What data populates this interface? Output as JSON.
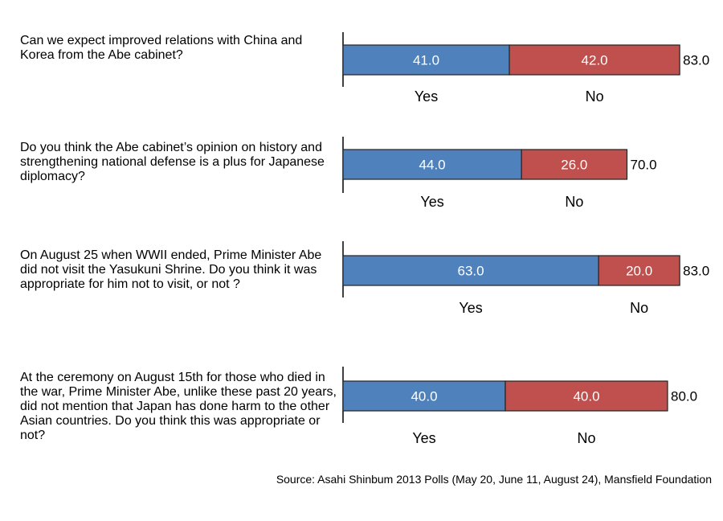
{
  "source": "Source: Asahi Shinbum 2013 Polls (May 20, June 11, August 24), Mansfield Foundation",
  "colors": {
    "yes": "#4f81bd",
    "no": "#c0504d",
    "border": "#222222"
  },
  "chart_data": [
    {
      "type": "bar",
      "stacked": true,
      "orientation": "horizontal",
      "title": "Can we expect improved relations with China and Korea from the Abe cabinet?",
      "series": [
        {
          "name": "Yes",
          "values": [
            41.0
          ]
        },
        {
          "name": "No",
          "values": [
            42.0
          ]
        }
      ],
      "total": "83.0",
      "labels": {
        "yes": "41.0",
        "no": "42.0"
      }
    },
    {
      "type": "bar",
      "stacked": true,
      "orientation": "horizontal",
      "title": "Do you think the Abe cabinet’s opinion on history and strengthening national defense is a plus for Japanese diplomacy?",
      "series": [
        {
          "name": "Yes",
          "values": [
            44.0
          ]
        },
        {
          "name": "No",
          "values": [
            26.0
          ]
        }
      ],
      "total": "70.0",
      "labels": {
        "yes": "44.0",
        "no": "26.0"
      }
    },
    {
      "type": "bar",
      "stacked": true,
      "orientation": "horizontal",
      "title": "On August 25 when WWII ended, Prime Minister Abe did not visit the Yasukuni Shrine. Do you think it was appropriate for him not to visit, or not ?",
      "series": [
        {
          "name": "Yes",
          "values": [
            63.0
          ]
        },
        {
          "name": "No",
          "values": [
            20.0
          ]
        }
      ],
      "total": "83.0",
      "labels": {
        "yes": "63.0",
        "no": "20.0"
      }
    },
    {
      "type": "bar",
      "stacked": true,
      "orientation": "horizontal",
      "title": "At the ceremony on August 15th for those who died in the war, Prime Minister Abe, unlike these past 20 years, did not mention that Japan has done harm to the other Asian countries. Do you think this was appropriate or not?",
      "series": [
        {
          "name": "Yes",
          "values": [
            40.0
          ]
        },
        {
          "name": "No",
          "values": [
            40.0
          ]
        }
      ],
      "total": "80.0",
      "labels": {
        "yes": "40.0",
        "no": "40.0"
      }
    }
  ]
}
